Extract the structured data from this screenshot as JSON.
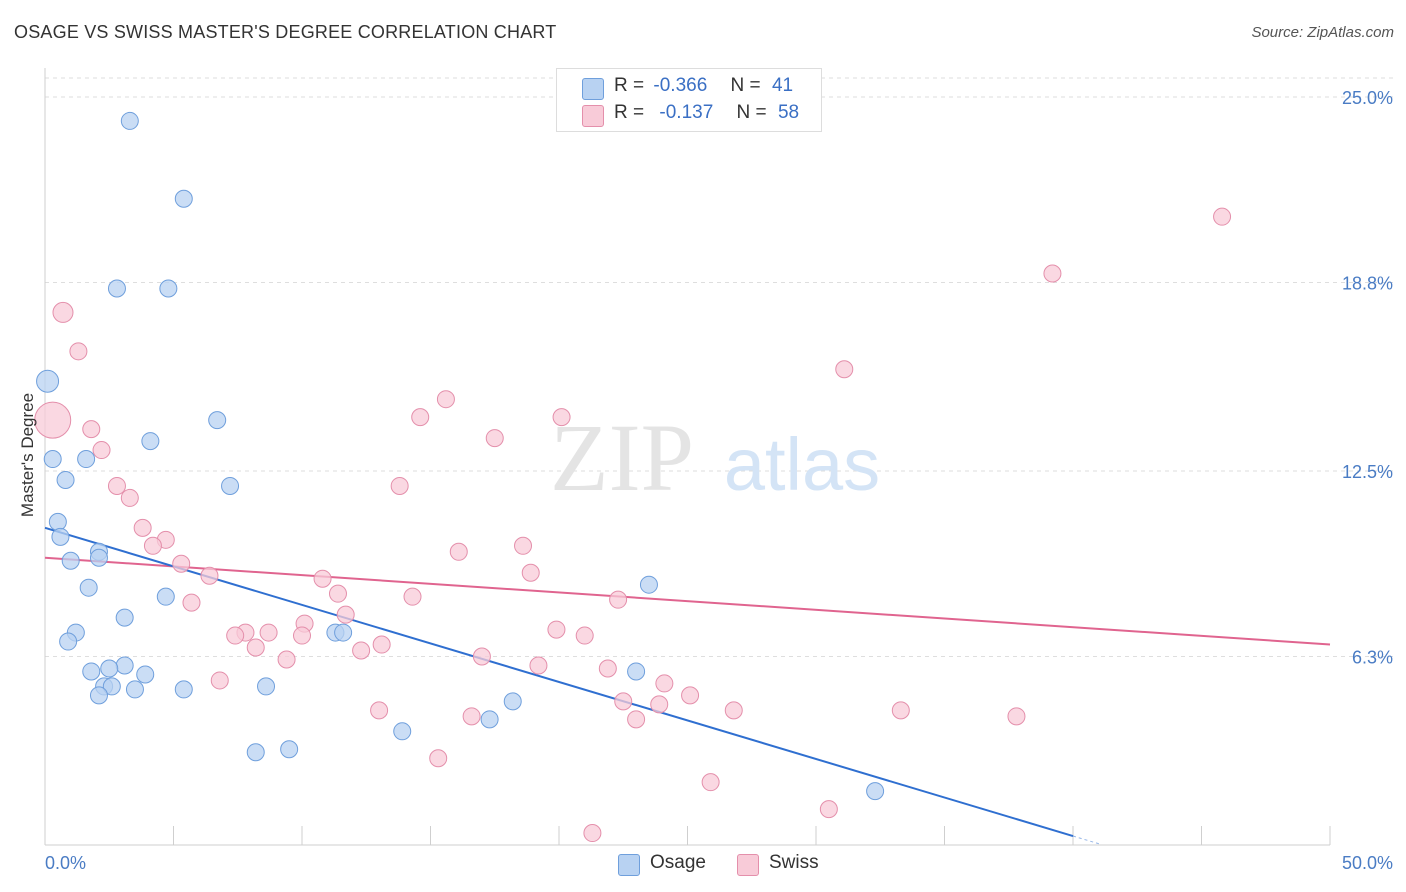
{
  "title": "OSAGE VS SWISS MASTER'S DEGREE CORRELATION CHART",
  "source": "Source: ZipAtlas.com",
  "watermark": {
    "zip": "ZIP",
    "atlas": "atlas"
  },
  "legend": {
    "rows": [
      {
        "r_label": "R =",
        "r_value": "-0.366",
        "n_label": "N =",
        "n_value": "41",
        "color": "#a8c8f0",
        "stroke": "#6f9fdc"
      },
      {
        "r_label": "R =",
        "r_value": "-0.137",
        "n_label": "N =",
        "n_value": "58",
        "color": "#f7c0d0",
        "stroke": "#e890ab"
      }
    ]
  },
  "bottom_legend": [
    {
      "label": "Osage",
      "color": "#a8c8f0"
    },
    {
      "label": "Swiss",
      "color": "#f7c0d0"
    }
  ],
  "colors": {
    "osage_fill": "#b8d2f2",
    "osage_stroke": "#6f9fdc",
    "osage_line": "#2f6fd0",
    "swiss_fill": "#f8cbd8",
    "swiss_stroke": "#e48fab",
    "swiss_line": "#e0648f",
    "tick": "#4a7cc4",
    "grid": "#dedede"
  },
  "chart_data": {
    "type": "scatter",
    "title": "OSAGE VS SWISS MASTER'S DEGREE CORRELATION CHART",
    "xlabel": "",
    "ylabel": "Master's Degree",
    "xlim": [
      0,
      50
    ],
    "ylim": [
      0,
      25.0
    ],
    "y_ticks": [
      6.3,
      12.5,
      18.8,
      25.0
    ],
    "y_tick_labels": [
      "6.3%",
      "12.5%",
      "18.8%",
      "25.0%"
    ],
    "x_tick_labels": [
      "0.0%",
      "50.0%"
    ],
    "grid": true,
    "legend_position": "top-center",
    "series": [
      {
        "name": "Osage",
        "points": [
          [
            3.3,
            24.2
          ],
          [
            5.4,
            21.6
          ],
          [
            2.8,
            18.6
          ],
          [
            4.8,
            18.6
          ],
          [
            0.1,
            15.5
          ],
          [
            6.7,
            14.2
          ],
          [
            4.1,
            13.5
          ],
          [
            0.3,
            12.9
          ],
          [
            1.6,
            12.9
          ],
          [
            0.8,
            12.2
          ],
          [
            7.2,
            12.0
          ],
          [
            0.5,
            10.8
          ],
          [
            0.6,
            10.3
          ],
          [
            2.1,
            9.8
          ],
          [
            1.0,
            9.5
          ],
          [
            2.1,
            9.6
          ],
          [
            1.7,
            8.6
          ],
          [
            4.7,
            8.3
          ],
          [
            23.5,
            8.7
          ],
          [
            3.1,
            7.6
          ],
          [
            1.2,
            7.1
          ],
          [
            11.3,
            7.1
          ],
          [
            11.6,
            7.1
          ],
          [
            0.9,
            6.8
          ],
          [
            3.1,
            6.0
          ],
          [
            1.8,
            5.8
          ],
          [
            2.5,
            5.9
          ],
          [
            3.9,
            5.7
          ],
          [
            2.3,
            5.3
          ],
          [
            2.6,
            5.3
          ],
          [
            3.5,
            5.2
          ],
          [
            5.4,
            5.2
          ],
          [
            8.6,
            5.3
          ],
          [
            2.1,
            5.0
          ],
          [
            18.2,
            4.8
          ],
          [
            23.0,
            5.8
          ],
          [
            17.3,
            4.2
          ],
          [
            13.9,
            3.8
          ],
          [
            8.2,
            3.1
          ],
          [
            9.5,
            3.2
          ],
          [
            32.3,
            1.8
          ]
        ],
        "trend": {
          "x": [
            0,
            40
          ],
          "y": [
            10.6,
            0.3
          ]
        }
      },
      {
        "name": "Swiss",
        "points": [
          [
            45.8,
            21.0
          ],
          [
            39.2,
            19.1
          ],
          [
            0.7,
            17.8
          ],
          [
            1.3,
            16.5
          ],
          [
            31.1,
            15.9
          ],
          [
            15.6,
            14.9
          ],
          [
            0.3,
            14.2
          ],
          [
            14.6,
            14.3
          ],
          [
            20.1,
            14.3
          ],
          [
            1.8,
            13.9
          ],
          [
            17.5,
            13.6
          ],
          [
            2.2,
            13.2
          ],
          [
            13.8,
            12.0
          ],
          [
            2.8,
            12.0
          ],
          [
            3.3,
            11.6
          ],
          [
            3.8,
            10.6
          ],
          [
            4.7,
            10.2
          ],
          [
            4.2,
            10.0
          ],
          [
            16.1,
            9.8
          ],
          [
            18.6,
            10.0
          ],
          [
            5.3,
            9.4
          ],
          [
            18.9,
            9.1
          ],
          [
            6.4,
            9.0
          ],
          [
            10.8,
            8.9
          ],
          [
            11.4,
            8.4
          ],
          [
            14.3,
            8.3
          ],
          [
            22.3,
            8.2
          ],
          [
            5.7,
            8.1
          ],
          [
            11.7,
            7.7
          ],
          [
            10.1,
            7.4
          ],
          [
            19.9,
            7.2
          ],
          [
            7.8,
            7.1
          ],
          [
            8.7,
            7.1
          ],
          [
            7.4,
            7.0
          ],
          [
            10.0,
            7.0
          ],
          [
            21.0,
            7.0
          ],
          [
            13.1,
            6.7
          ],
          [
            8.2,
            6.6
          ],
          [
            12.3,
            6.5
          ],
          [
            9.4,
            6.2
          ],
          [
            17.0,
            6.3
          ],
          [
            19.2,
            6.0
          ],
          [
            21.9,
            5.9
          ],
          [
            6.8,
            5.5
          ],
          [
            24.1,
            5.4
          ],
          [
            25.1,
            5.0
          ],
          [
            22.5,
            4.8
          ],
          [
            23.9,
            4.7
          ],
          [
            26.8,
            4.5
          ],
          [
            13.0,
            4.5
          ],
          [
            33.3,
            4.5
          ],
          [
            16.6,
            4.3
          ],
          [
            37.8,
            4.3
          ],
          [
            23.0,
            4.2
          ],
          [
            15.3,
            2.9
          ],
          [
            25.9,
            2.1
          ],
          [
            30.5,
            1.2
          ],
          [
            21.3,
            0.4
          ]
        ],
        "trend": {
          "x": [
            0,
            50
          ],
          "y": [
            9.6,
            6.7
          ]
        }
      }
    ]
  }
}
